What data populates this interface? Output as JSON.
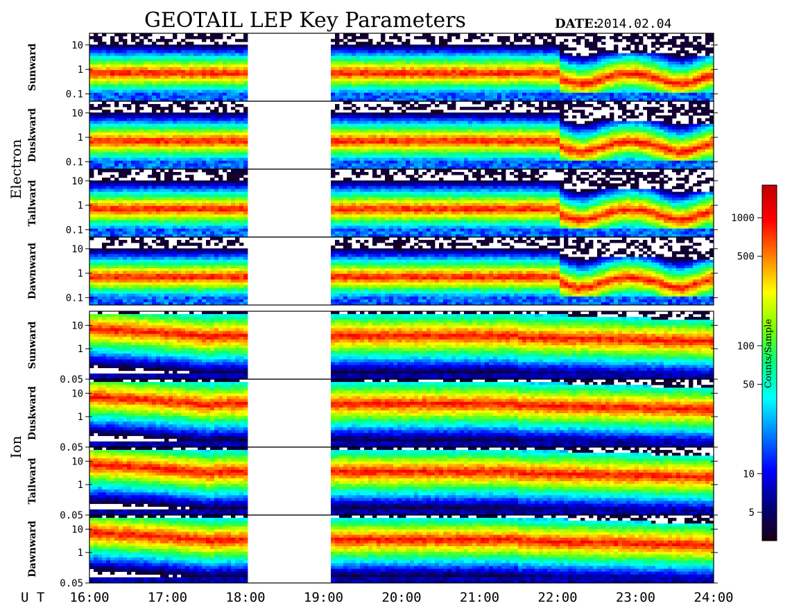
{
  "title": "GEOTAIL LEP Key Parameters",
  "date_label": "DATE:",
  "date_value": "2014.02.04",
  "ut_label": "U T",
  "colorbar": {
    "label": "Counts/Sample",
    "ticks": [
      "1000",
      "500",
      "100",
      "50",
      "10",
      "5"
    ],
    "tick_values": [
      1000,
      500,
      100,
      50,
      10,
      5
    ],
    "range": [
      3,
      1800
    ],
    "scale": "log",
    "colormap": [
      "#1a0010",
      "#000080",
      "#0000ff",
      "#0080ff",
      "#00ffff",
      "#00ff80",
      "#80ff00",
      "#ffff00",
      "#ff8000",
      "#ff0000",
      "#c00000"
    ]
  },
  "groups": [
    {
      "name": "Electron",
      "panels": 4
    },
    {
      "name": "Ion",
      "panels": 4
    }
  ],
  "chart_data": {
    "type": "heatmap",
    "x_axis": {
      "range": [
        "16:00",
        "24:00"
      ],
      "ticks": [
        "16:00",
        "17:00",
        "18:00",
        "19:00",
        "20:00",
        "21:00",
        "22:00",
        "23:00",
        "24:00"
      ],
      "gap": [
        "18:00",
        "19:05"
      ]
    },
    "panels": [
      {
        "group": "Electron",
        "label": "Sunward",
        "yticks": [
          "10",
          "1",
          "0.1"
        ],
        "ytick_values": [
          10,
          1,
          0.1
        ],
        "yrange": [
          0.05,
          30
        ],
        "yscale": "log"
      },
      {
        "group": "Electron",
        "label": "Duskward",
        "yticks": [
          "10",
          "1",
          "0.1"
        ],
        "ytick_values": [
          10,
          1,
          0.1
        ],
        "yrange": [
          0.05,
          30
        ],
        "yscale": "log"
      },
      {
        "group": "Electron",
        "label": "Tailward",
        "yticks": [
          "10",
          "1",
          "0.1"
        ],
        "ytick_values": [
          10,
          1,
          0.1
        ],
        "yrange": [
          0.05,
          30
        ],
        "yscale": "log"
      },
      {
        "group": "Electron",
        "label": "Dawnward",
        "yticks": [
          "10",
          "1",
          "0.1"
        ],
        "ytick_values": [
          10,
          1,
          0.1
        ],
        "yrange": [
          0.05,
          30
        ],
        "yscale": "log"
      },
      {
        "group": "Ion",
        "label": "Sunward",
        "yticks": [
          "10",
          "1",
          "0.05"
        ],
        "ytick_values": [
          10,
          1,
          0.05
        ],
        "yrange": [
          0.05,
          40
        ],
        "yscale": "log"
      },
      {
        "group": "Ion",
        "label": "Duskward",
        "yticks": [
          "10",
          "1",
          "0.05"
        ],
        "ytick_values": [
          10,
          1,
          0.05
        ],
        "yrange": [
          0.05,
          40
        ],
        "yscale": "log"
      },
      {
        "group": "Ion",
        "label": "Tailward",
        "yticks": [
          "10",
          "1",
          "0.05"
        ],
        "ytick_values": [
          10,
          1,
          0.05
        ],
        "yrange": [
          0.05,
          40
        ],
        "yscale": "log"
      },
      {
        "group": "Ion",
        "label": "Dawnward",
        "yticks": [
          "10",
          "1",
          "0.05"
        ],
        "ytick_values": [
          10,
          1,
          0.05
        ],
        "yrange": [
          0.05,
          40
        ],
        "yscale": "log"
      }
    ]
  }
}
